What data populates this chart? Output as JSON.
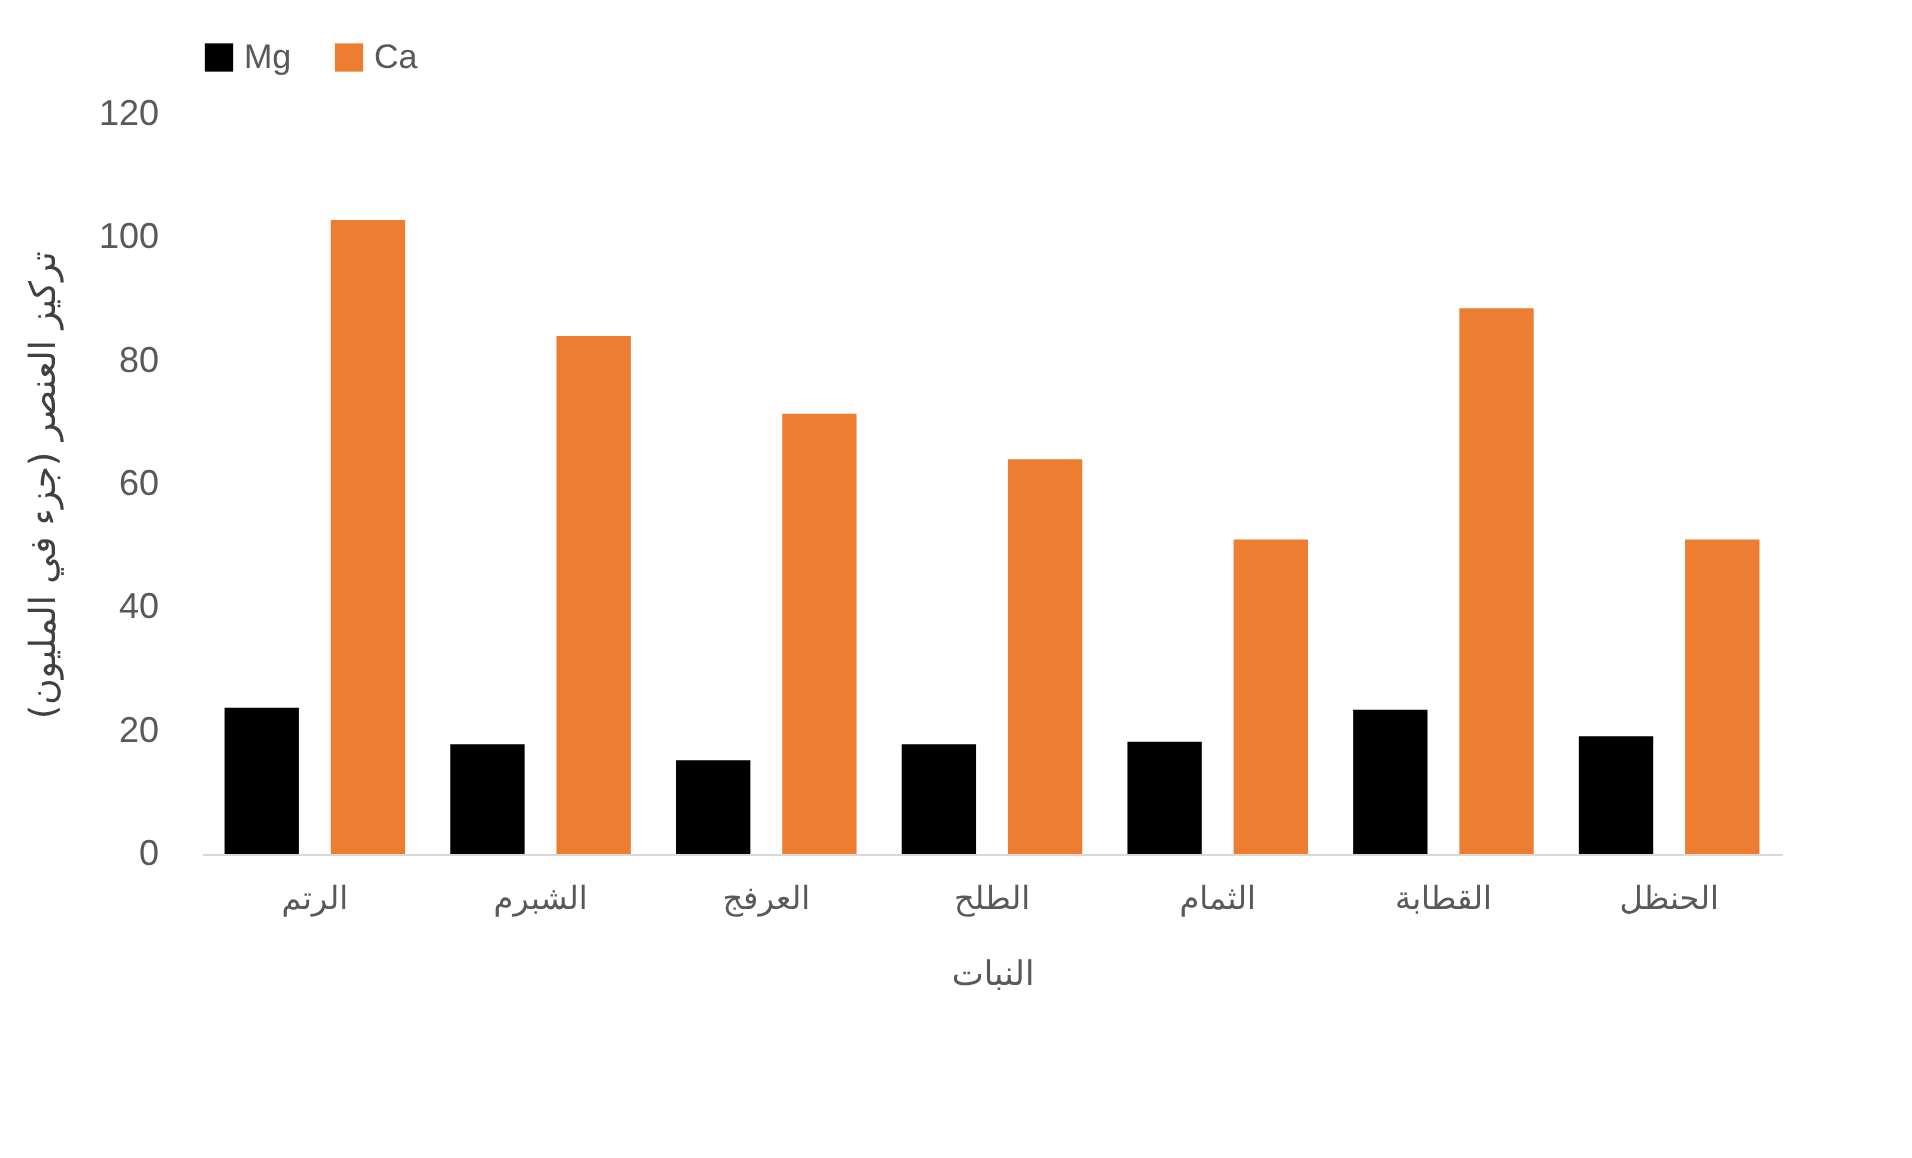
{
  "chart_data": {
    "type": "bar",
    "xlabel": "النبات",
    "ylabel": "تركيز العنصر (جزء في المليون)",
    "categories": [
      "الرتم",
      "الشبرم",
      "العرفج",
      "الطلح",
      "الثمام",
      "القطابة",
      "الحنظل"
    ],
    "series": [
      {
        "name": "Mg",
        "color": "#000000",
        "values": [
          23.7,
          17.8,
          15.2,
          17.8,
          18.2,
          23.4,
          19.1
        ]
      },
      {
        "name": "Ca",
        "color": "#ed7d31",
        "values": [
          102.8,
          84,
          71.4,
          64,
          51,
          88.5,
          51
        ]
      }
    ],
    "ylim": [
      0,
      120
    ],
    "yticks": [
      0,
      20,
      40,
      60,
      80,
      100,
      120
    ],
    "grid": false,
    "legend": "top"
  }
}
